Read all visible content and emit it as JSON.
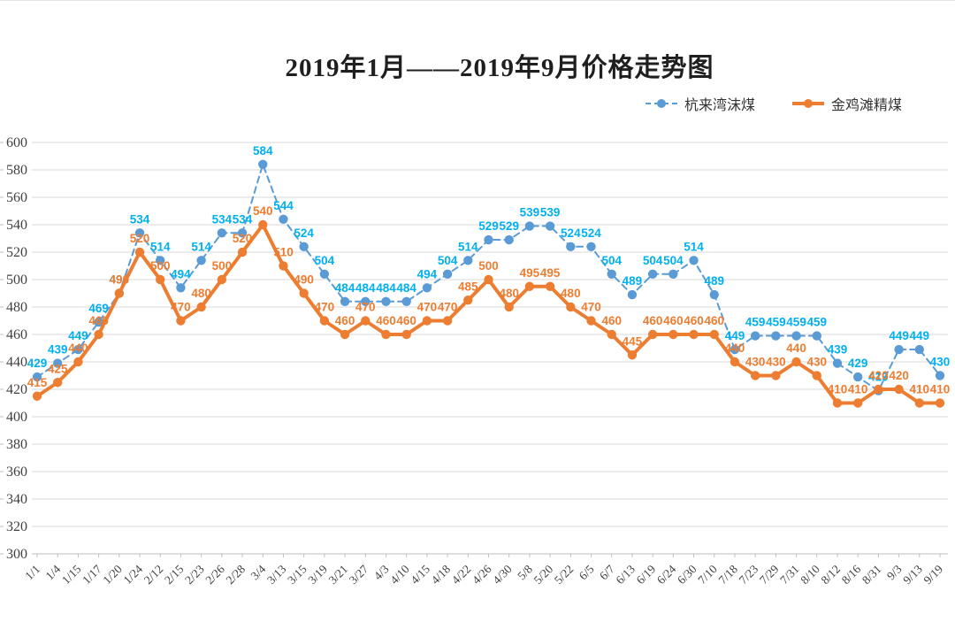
{
  "chart_data": {
    "type": "line",
    "title": "2019年1月——2019年9月价格走势图",
    "xlabel": "",
    "ylabel": "",
    "y_axis": {
      "min": 300,
      "max": 600,
      "step": 20
    },
    "grid": true,
    "legend_position": "top-right",
    "categories": [
      "1/1",
      "1/4",
      "1/15",
      "1/17",
      "1/20",
      "1/24",
      "2/12",
      "2/15",
      "2/23",
      "2/26",
      "2/28",
      "3/4",
      "3/13",
      "3/15",
      "3/19",
      "3/21",
      "3/27",
      "4/3",
      "4/10",
      "4/15",
      "4/18",
      "4/22",
      "4/26",
      "4/30",
      "5/8",
      "5/20",
      "5/22",
      "6/5",
      "6/7",
      "6/13",
      "6/19",
      "6/24",
      "6/30",
      "7/10",
      "7/18",
      "7/23",
      "7/29",
      "7/31",
      "8/10",
      "8/12",
      "8/16",
      "8/31",
      "9/3",
      "9/13",
      "9/19"
    ],
    "series": [
      {
        "name": "杭来湾沫煤",
        "line_style": "dashed",
        "color": "#5B9BD5",
        "label_color": "#00B0F0",
        "values": [
          429,
          439,
          449,
          469,
          490,
          534,
          514,
          494,
          514,
          534,
          534,
          584,
          544,
          524,
          504,
          484,
          484,
          484,
          484,
          494,
          504,
          514,
          529,
          529,
          539,
          539,
          524,
          524,
          504,
          489,
          504,
          504,
          514,
          489,
          449,
          459,
          459,
          459,
          459,
          439,
          429,
          419,
          449,
          449,
          430
        ]
      },
      {
        "name": "金鸡滩精煤",
        "line_style": "solid",
        "color": "#ED7D31",
        "label_color": "#ED7D31",
        "values": [
          415,
          425,
          440,
          460,
          490,
          520,
          500,
          470,
          480,
          500,
          520,
          540,
          510,
          490,
          470,
          460,
          470,
          460,
          460,
          470,
          470,
          485,
          500,
          480,
          495,
          495,
          480,
          470,
          460,
          445,
          460,
          460,
          460,
          460,
          440,
          430,
          430,
          440,
          430,
          410,
          410,
          420,
          420,
          410,
          410
        ]
      }
    ],
    "style_colors": {
      "grid": "#D9D9D9",
      "axis": "#BFBFBF",
      "tick_label": "#404040"
    }
  }
}
